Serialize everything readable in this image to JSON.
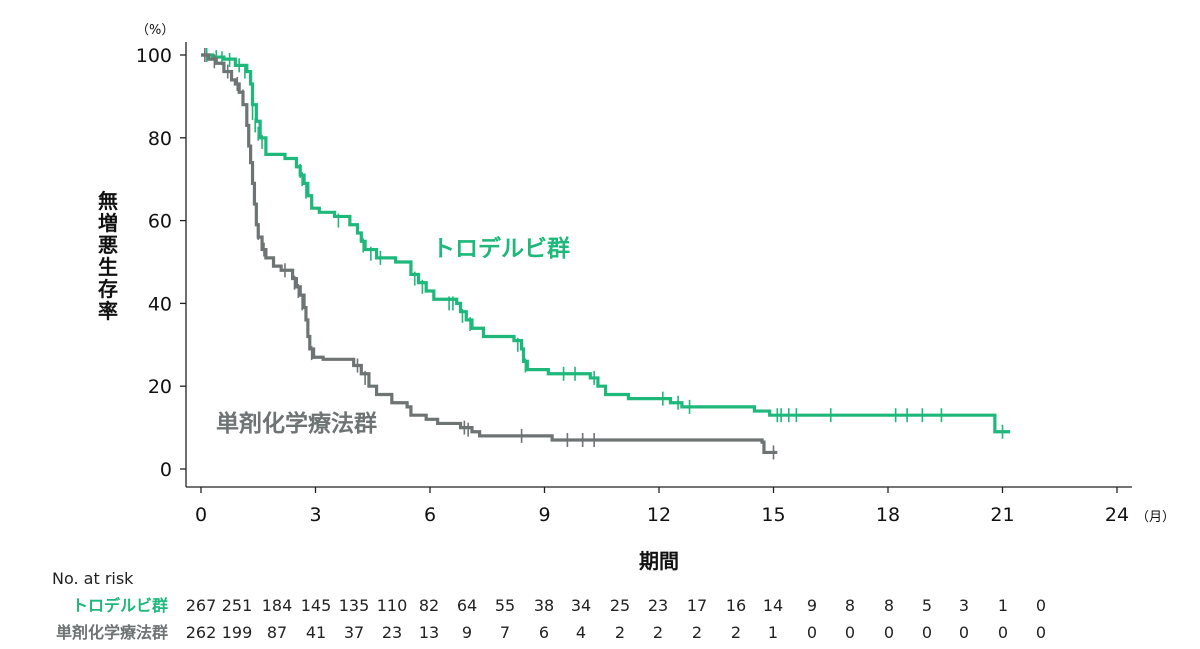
{
  "chart_data": {
    "type": "line",
    "title": "",
    "xlabel": "期間",
    "x_unit": "（月）",
    "ylabel": "無増悪生存率",
    "y_unit": "（%）",
    "xlim": [
      0,
      24
    ],
    "ylim": [
      0,
      100
    ],
    "x_ticks": [
      0,
      3,
      6,
      9,
      12,
      15,
      18,
      21,
      24
    ],
    "y_ticks": [
      0,
      20,
      40,
      60,
      80,
      100
    ],
    "grid": false,
    "series": [
      {
        "name": "トロデルビ群",
        "color": "#1db87a",
        "steps": [
          [
            0,
            100
          ],
          [
            0.3,
            99.5
          ],
          [
            0.6,
            99
          ],
          [
            0.9,
            97.5
          ],
          [
            1.2,
            96
          ],
          [
            1.3,
            93
          ],
          [
            1.35,
            88
          ],
          [
            1.45,
            84
          ],
          [
            1.55,
            80
          ],
          [
            1.7,
            76
          ],
          [
            2.2,
            75
          ],
          [
            2.5,
            73
          ],
          [
            2.6,
            71
          ],
          [
            2.7,
            69
          ],
          [
            2.8,
            66
          ],
          [
            2.9,
            63
          ],
          [
            3.1,
            62
          ],
          [
            3.5,
            61
          ],
          [
            3.9,
            59
          ],
          [
            4.1,
            57
          ],
          [
            4.2,
            55
          ],
          [
            4.3,
            53
          ],
          [
            4.6,
            51
          ],
          [
            5.1,
            50
          ],
          [
            5.5,
            47
          ],
          [
            5.7,
            45
          ],
          [
            5.9,
            43
          ],
          [
            6.1,
            41
          ],
          [
            6.7,
            40
          ],
          [
            6.8,
            38
          ],
          [
            6.95,
            36
          ],
          [
            7.1,
            34
          ],
          [
            7.4,
            32
          ],
          [
            8.2,
            31
          ],
          [
            8.4,
            29
          ],
          [
            8.45,
            26
          ],
          [
            8.55,
            24
          ],
          [
            9.1,
            23
          ],
          [
            10.2,
            22
          ],
          [
            10.4,
            20
          ],
          [
            10.6,
            18
          ],
          [
            11.2,
            17
          ],
          [
            12.3,
            16
          ],
          [
            12.6,
            15
          ],
          [
            14.5,
            14
          ],
          [
            14.9,
            13
          ],
          [
            20.7,
            13
          ],
          [
            20.8,
            9
          ],
          [
            21.2,
            9
          ]
        ],
        "censors": [
          [
            0.15,
            100
          ],
          [
            0.4,
            99.5
          ],
          [
            0.55,
            99.2
          ],
          [
            0.75,
            98.8
          ],
          [
            1.0,
            97.5
          ],
          [
            1.15,
            96
          ],
          [
            1.35,
            86
          ],
          [
            1.42,
            83
          ],
          [
            1.5,
            81
          ],
          [
            1.6,
            79
          ],
          [
            2.6,
            72
          ],
          [
            2.65,
            70
          ],
          [
            2.75,
            67
          ],
          [
            3.6,
            60
          ],
          [
            4.25,
            54
          ],
          [
            4.45,
            52
          ],
          [
            4.7,
            51
          ],
          [
            5.6,
            46
          ],
          [
            5.8,
            44
          ],
          [
            6.5,
            40
          ],
          [
            6.6,
            40
          ],
          [
            6.85,
            37
          ],
          [
            7.05,
            35
          ],
          [
            8.3,
            30
          ],
          [
            8.5,
            25
          ],
          [
            9.5,
            23
          ],
          [
            9.8,
            23
          ],
          [
            10.3,
            22
          ],
          [
            12.1,
            17
          ],
          [
            12.5,
            16
          ],
          [
            12.8,
            15
          ],
          [
            15.1,
            13
          ],
          [
            15.2,
            13
          ],
          [
            15.4,
            13
          ],
          [
            15.6,
            13
          ],
          [
            16.5,
            13
          ],
          [
            18.2,
            13
          ],
          [
            18.5,
            13
          ],
          [
            18.9,
            13
          ],
          [
            19.4,
            13
          ],
          [
            21.0,
            9
          ]
        ]
      },
      {
        "name": "単剤化学療法群",
        "color": "#6e7374",
        "steps": [
          [
            0,
            100
          ],
          [
            0.2,
            99
          ],
          [
            0.4,
            98
          ],
          [
            0.6,
            96
          ],
          [
            0.8,
            94
          ],
          [
            0.9,
            93
          ],
          [
            1.0,
            91
          ],
          [
            1.1,
            88
          ],
          [
            1.2,
            83
          ],
          [
            1.25,
            78
          ],
          [
            1.3,
            74
          ],
          [
            1.35,
            69
          ],
          [
            1.4,
            64
          ],
          [
            1.45,
            59
          ],
          [
            1.5,
            56
          ],
          [
            1.6,
            53
          ],
          [
            1.7,
            51
          ],
          [
            1.9,
            49
          ],
          [
            2.1,
            48
          ],
          [
            2.4,
            46
          ],
          [
            2.5,
            44
          ],
          [
            2.6,
            42
          ],
          [
            2.7,
            39
          ],
          [
            2.75,
            36
          ],
          [
            2.8,
            32
          ],
          [
            2.85,
            29
          ],
          [
            2.95,
            27
          ],
          [
            3.2,
            26.5
          ],
          [
            4.0,
            25
          ],
          [
            4.2,
            23
          ],
          [
            4.4,
            20
          ],
          [
            4.6,
            18
          ],
          [
            5.0,
            16
          ],
          [
            5.4,
            15
          ],
          [
            5.5,
            13
          ],
          [
            5.9,
            12
          ],
          [
            6.2,
            11
          ],
          [
            6.8,
            10
          ],
          [
            7.1,
            9
          ],
          [
            7.3,
            8
          ],
          [
            9.2,
            7
          ],
          [
            14.7,
            6.5
          ],
          [
            14.75,
            4
          ],
          [
            15.1,
            4
          ]
        ],
        "censors": [
          [
            0.1,
            100
          ],
          [
            0.35,
            98.5
          ],
          [
            0.7,
            96
          ],
          [
            0.95,
            93
          ],
          [
            1.1,
            90
          ],
          [
            1.2,
            85
          ],
          [
            1.3,
            76
          ],
          [
            1.4,
            67
          ],
          [
            1.5,
            57
          ],
          [
            1.65,
            53
          ],
          [
            2.2,
            48
          ],
          [
            2.45,
            45
          ],
          [
            2.55,
            43
          ],
          [
            2.65,
            40
          ],
          [
            2.9,
            28
          ],
          [
            4.1,
            25
          ],
          [
            4.3,
            22
          ],
          [
            6.9,
            10
          ],
          [
            7.0,
            9.5
          ],
          [
            8.4,
            8
          ],
          [
            9.6,
            7
          ],
          [
            10.0,
            7
          ],
          [
            10.3,
            7
          ],
          [
            15.0,
            4
          ]
        ]
      }
    ]
  },
  "labels": {
    "series_a": "トロデルビ群",
    "series_b": "単剤化学療法群"
  },
  "at_risk": {
    "header": "No. at risk",
    "rows": [
      {
        "name": "トロデルビ群",
        "color": "#1db87a",
        "values": [
          "267",
          "251",
          "184",
          "145",
          "135",
          "110",
          "82",
          "64",
          "55",
          "38",
          "34",
          "25",
          "23",
          "17",
          "16",
          "14",
          "9",
          "8",
          "8",
          "5",
          "3",
          "1",
          "0"
        ]
      },
      {
        "name": "単剤化学療法群",
        "color": "#6e7374",
        "values": [
          "262",
          "199",
          "87",
          "41",
          "37",
          "23",
          "13",
          "9",
          "7",
          "6",
          "4",
          "2",
          "2",
          "2",
          "2",
          "1",
          "0",
          "0",
          "0",
          "0",
          "0",
          "0",
          "0"
        ]
      }
    ]
  }
}
